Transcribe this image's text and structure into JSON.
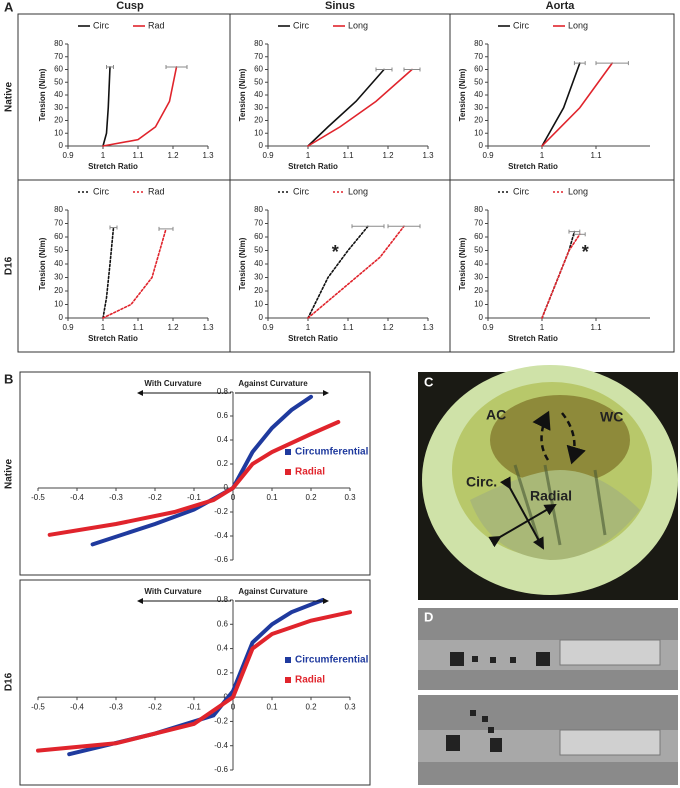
{
  "panels": [
    "A",
    "B",
    "C",
    "D"
  ],
  "column_titles": [
    "Cusp",
    "Sinus",
    "Aorta"
  ],
  "row_labels": [
    "Native",
    "D16",
    "Native",
    "D16"
  ],
  "photo_c_labels": [
    "AC",
    "WC",
    "Circ.",
    "Radial"
  ],
  "chart_data": [
    {
      "type": "line",
      "x_label": "Stretch Ratio",
      "y_label": "Tension (N/m)",
      "xlim": [
        0.9,
        1.3
      ],
      "xticks": [
        0.9,
        1,
        1.1,
        1.2,
        1.3
      ],
      "ylim": [
        0,
        80
      ],
      "yticks": [
        0,
        10,
        20,
        30,
        40,
        50,
        60,
        70,
        80
      ],
      "legend": "top",
      "series": [
        {
          "name": "Circ",
          "color": "#111111",
          "line_style": "solid",
          "x": [
            1.0,
            1.01,
            1.015,
            1.02
          ],
          "values": [
            0,
            10,
            30,
            62
          ],
          "xerr": 0.01
        },
        {
          "name": "Rad",
          "color": "#e0242c",
          "line_style": "solid",
          "x": [
            1.0,
            1.1,
            1.15,
            1.19,
            1.21
          ],
          "values": [
            0,
            5,
            15,
            35,
            62
          ],
          "xerr": 0.03
        }
      ]
    },
    {
      "type": "line",
      "x_label": "Stretch Ratio",
      "y_label": "Tension (N/m)",
      "xlim": [
        0.9,
        1.3
      ],
      "xticks": [
        0.9,
        1,
        1.1,
        1.2,
        1.3
      ],
      "ylim": [
        0,
        80
      ],
      "yticks": [
        0,
        10,
        20,
        30,
        40,
        50,
        60,
        70,
        80
      ],
      "legend": "top",
      "series": [
        {
          "name": "Circ",
          "color": "#111111",
          "line_style": "solid",
          "x": [
            1.0,
            1.05,
            1.12,
            1.19
          ],
          "values": [
            0,
            15,
            35,
            60
          ],
          "xerr": 0.02
        },
        {
          "name": "Long",
          "color": "#e0242c",
          "line_style": "solid",
          "x": [
            1.0,
            1.08,
            1.17,
            1.26
          ],
          "values": [
            0,
            15,
            35,
            60
          ],
          "xerr": 0.02
        }
      ]
    },
    {
      "type": "line",
      "x_label": "Stretch Ratio",
      "y_label": "Tension (N/m)",
      "xlim": [
        0.9,
        1.2
      ],
      "xticks": [
        0.9,
        1,
        1.1
      ],
      "ylim": [
        0,
        80
      ],
      "yticks": [
        0,
        10,
        20,
        30,
        40,
        50,
        60,
        70,
        80
      ],
      "legend": "top",
      "series": [
        {
          "name": "Circ",
          "color": "#111111",
          "line_style": "solid",
          "x": [
            1.0,
            1.04,
            1.07
          ],
          "values": [
            0,
            30,
            65
          ],
          "xerr": 0.01
        },
        {
          "name": "Long",
          "color": "#e0242c",
          "line_style": "solid",
          "x": [
            1.0,
            1.07,
            1.13
          ],
          "values": [
            0,
            30,
            65
          ],
          "xerr": 0.03
        }
      ]
    },
    {
      "type": "line",
      "x_label": "Stretch Ratio",
      "y_label": "Tension (N/m)",
      "xlim": [
        0.9,
        1.3
      ],
      "xticks": [
        0.9,
        1,
        1.1,
        1.2,
        1.3
      ],
      "ylim": [
        0,
        80
      ],
      "yticks": [
        0,
        10,
        20,
        30,
        40,
        50,
        60,
        70,
        80
      ],
      "legend": "top",
      "series": [
        {
          "name": "Circ",
          "color": "#111111",
          "line_style": "dotted",
          "x": [
            1.0,
            1.01,
            1.02,
            1.03
          ],
          "values": [
            0,
            15,
            40,
            67
          ],
          "xerr": 0.01
        },
        {
          "name": "Rad",
          "color": "#e0242c",
          "line_style": "dotted",
          "x": [
            1.0,
            1.08,
            1.14,
            1.18
          ],
          "values": [
            0,
            10,
            30,
            66
          ],
          "xerr": 0.02
        }
      ]
    },
    {
      "type": "line",
      "x_label": "Stretch Ratio",
      "y_label": "Tension (N/m)",
      "xlim": [
        0.9,
        1.3
      ],
      "xticks": [
        0.9,
        1,
        1.1,
        1.2,
        1.3
      ],
      "ylim": [
        0,
        80
      ],
      "yticks": [
        0,
        10,
        20,
        30,
        40,
        50,
        60,
        70,
        80
      ],
      "legend": "top",
      "annotations": [
        "*"
      ],
      "series": [
        {
          "name": "Circ",
          "color": "#111111",
          "line_style": "dotted",
          "x": [
            1.0,
            1.05,
            1.1,
            1.15
          ],
          "values": [
            0,
            30,
            50,
            68
          ],
          "xerr": 0.04
        },
        {
          "name": "Long",
          "color": "#e0242c",
          "line_style": "dotted",
          "x": [
            1.0,
            1.1,
            1.18,
            1.24
          ],
          "values": [
            0,
            25,
            45,
            68
          ],
          "xerr": 0.04
        }
      ]
    },
    {
      "type": "line",
      "x_label": "Stretch Ratio",
      "y_label": "Tension (N/m)",
      "xlim": [
        0.9,
        1.2
      ],
      "xticks": [
        0.9,
        1,
        1.1
      ],
      "ylim": [
        0,
        80
      ],
      "yticks": [
        0,
        10,
        20,
        30,
        40,
        50,
        60,
        70,
        80
      ],
      "legend": "top",
      "annotations": [
        "*"
      ],
      "series": [
        {
          "name": "Circ",
          "color": "#111111",
          "line_style": "dotted",
          "x": [
            1.0,
            1.03,
            1.05,
            1.06
          ],
          "values": [
            0,
            30,
            50,
            64
          ],
          "xerr": 0.01
        },
        {
          "name": "Long",
          "color": "#e0242c",
          "line_style": "dotted",
          "x": [
            1.0,
            1.03,
            1.05,
            1.07
          ],
          "values": [
            0,
            30,
            50,
            62
          ],
          "xerr": 0.01
        }
      ]
    },
    {
      "type": "line",
      "xlim": [
        -0.5,
        0.3
      ],
      "xticks": [
        -0.5,
        -0.4,
        -0.3,
        -0.2,
        -0.1,
        0,
        0.1,
        0.2,
        0.3
      ],
      "ylim": [
        -0.6,
        0.8
      ],
      "yticks": [
        -0.6,
        -0.4,
        -0.2,
        0,
        0.2,
        0.4,
        0.6,
        0.8
      ],
      "axes_at_origin": true,
      "legend": "right",
      "annotations": [
        "With Curvature",
        "Against Curvature"
      ],
      "series": [
        {
          "name": "Circumferential",
          "color": "#1f3a9e",
          "line_style": "thick",
          "x": [
            -0.36,
            -0.2,
            -0.1,
            0,
            0.05,
            0.1,
            0.15,
            0.2
          ],
          "values": [
            -0.47,
            -0.3,
            -0.18,
            0,
            0.3,
            0.5,
            0.65,
            0.76
          ]
        },
        {
          "name": "Radial",
          "color": "#e0242c",
          "line_style": "thick",
          "x": [
            -0.47,
            -0.3,
            -0.15,
            -0.05,
            0,
            0.05,
            0.1,
            0.2,
            0.27
          ],
          "values": [
            -0.39,
            -0.3,
            -0.2,
            -0.1,
            0,
            0.2,
            0.3,
            0.45,
            0.55
          ]
        }
      ]
    },
    {
      "type": "line",
      "xlim": [
        -0.5,
        0.3
      ],
      "xticks": [
        -0.5,
        -0.4,
        -0.3,
        -0.2,
        -0.1,
        0,
        0.1,
        0.2,
        0.3
      ],
      "ylim": [
        -0.6,
        0.8
      ],
      "yticks": [
        -0.6,
        -0.4,
        -0.2,
        0,
        0.2,
        0.4,
        0.6,
        0.8
      ],
      "axes_at_origin": true,
      "legend": "right",
      "annotations": [
        "With Curvature",
        "Against Curvature"
      ],
      "series": [
        {
          "name": "Circumferential",
          "color": "#1f3a9e",
          "line_style": "thick",
          "x": [
            -0.42,
            -0.2,
            -0.05,
            0,
            0.05,
            0.1,
            0.15,
            0.23
          ],
          "values": [
            -0.47,
            -0.3,
            -0.15,
            0.05,
            0.45,
            0.6,
            0.7,
            0.8
          ]
        },
        {
          "name": "Radial",
          "color": "#e0242c",
          "line_style": "thick",
          "x": [
            -0.5,
            -0.3,
            -0.1,
            0,
            0.05,
            0.1,
            0.2,
            0.3
          ],
          "values": [
            -0.44,
            -0.38,
            -0.22,
            0,
            0.4,
            0.52,
            0.63,
            0.7
          ]
        }
      ]
    }
  ]
}
